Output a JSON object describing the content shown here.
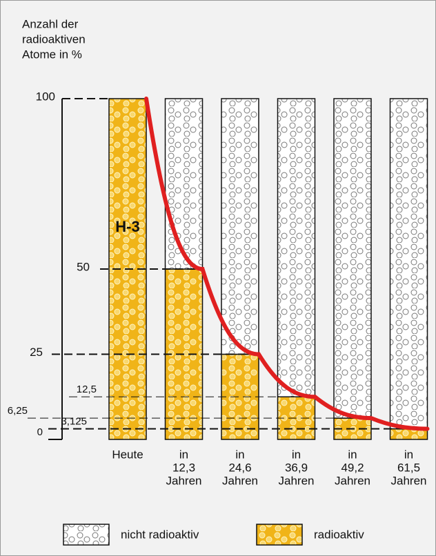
{
  "chart_data": {
    "type": "stacked_bar",
    "title": [
      "Anzahl der",
      "radioaktiven",
      "Atome in %"
    ],
    "annotation": "H-3",
    "categories": [
      [
        "Heute"
      ],
      [
        "in",
        "12,3",
        "Jahren"
      ],
      [
        "in",
        "24,6",
        "Jahren"
      ],
      [
        "in",
        "36,9",
        "Jahren"
      ],
      [
        "in",
        "49,2",
        "Jahren"
      ],
      [
        "in",
        "61,5",
        "Jahren"
      ]
    ],
    "series": [
      {
        "name": "radioaktiv",
        "color": "#f0b418",
        "values": [
          100,
          50,
          25,
          12.5,
          6.25,
          3.125
        ]
      },
      {
        "name": "nicht radioaktiv",
        "color": "#ffffff",
        "values": [
          0,
          50,
          75,
          87.5,
          93.75,
          96.875
        ]
      }
    ],
    "curve_color": "#e02020",
    "ylim": [
      0,
      100
    ],
    "yticks": [
      100,
      50,
      25,
      {
        "value": 12.5,
        "label": "12,5"
      },
      {
        "value": 6.25,
        "label": "6,25"
      },
      {
        "value": 3.125,
        "label": "3,125"
      },
      0
    ]
  }
}
